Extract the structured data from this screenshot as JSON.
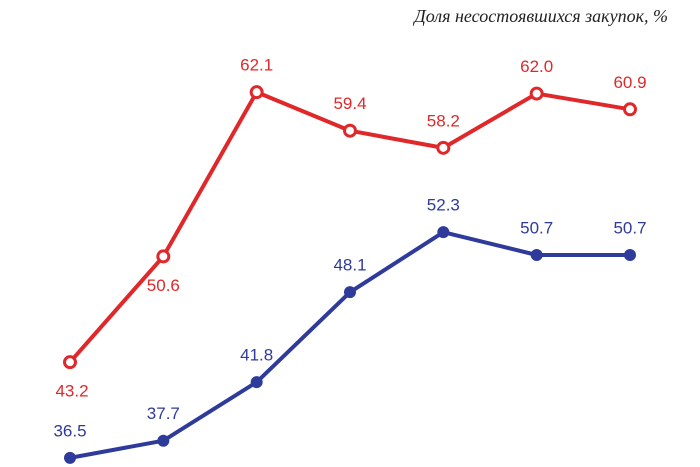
{
  "chart_data": {
    "type": "line",
    "title": "Доля несостоявшихся закупок, %",
    "categories": [
      null,
      null,
      null,
      null,
      null,
      null,
      null
    ],
    "series": [
      {
        "color": "#e0282b",
        "marker": "open",
        "values": [
          43.2,
          50.6,
          62.1,
          59.4,
          58.2,
          62.0,
          60.9
        ],
        "value_labels": [
          "43.2",
          "50.6",
          "62.1",
          "59.4",
          "58.2",
          "62.0",
          "60.9"
        ]
      },
      {
        "color": "#2f3b9a",
        "marker": "filled",
        "values": [
          36.5,
          37.7,
          41.8,
          48.1,
          52.3,
          50.7,
          50.7
        ],
        "value_labels": [
          "36.5",
          "37.7",
          "41.8",
          "48.1",
          "52.3",
          "50.7",
          "50.7"
        ]
      }
    ],
    "ylim": [
      36,
      64
    ]
  }
}
